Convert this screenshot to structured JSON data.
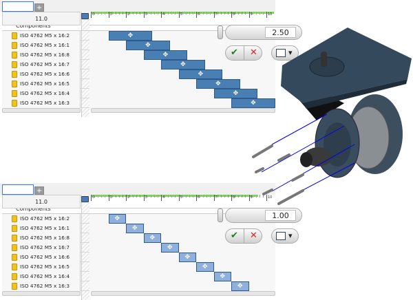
{
  "panels": [
    {
      "id": "top",
      "header_value": "11.0",
      "group_label": "Components",
      "spinner_value": "2.50",
      "bar_duration": 2.5,
      "bar_color": "#4a7fb4"
    },
    {
      "id": "bottom",
      "header_value": "11.0",
      "group_label": "Components",
      "spinner_value": "1.00",
      "bar_duration": 1.0,
      "bar_color": "#8fb0dc"
    }
  ],
  "tab_add_label": "+",
  "timeline": {
    "ticks": [
      "0",
      "1",
      "2",
      "3",
      "4",
      "5",
      "6",
      "7",
      "8",
      "9",
      "10"
    ]
  },
  "rows": [
    {
      "label": "ISO 4762 M5 x 16:2",
      "start": 1
    },
    {
      "label": "ISO 4762 M5 x 16:1",
      "start": 2
    },
    {
      "label": "ISO 4762 M5 x 16:8",
      "start": 3
    },
    {
      "label": "ISO 4762 M5 x 16:7",
      "start": 4
    },
    {
      "label": "ISO 4762 M5 x 16:6",
      "start": 5
    },
    {
      "label": "ISO 4762 M5 x 16:5",
      "start": 6
    },
    {
      "label": "ISO 4762 M5 x 16:4",
      "start": 7
    },
    {
      "label": "ISO 4762 M5 x 16:3",
      "start": 8
    }
  ],
  "buttons": {
    "ok": "✔",
    "cancel": "✕",
    "options": "▾"
  },
  "icons": {
    "component": "part-icon",
    "bar": "move-icon",
    "ok": "checkmark-icon",
    "cancel": "x-icon",
    "options": "list-options-icon"
  }
}
